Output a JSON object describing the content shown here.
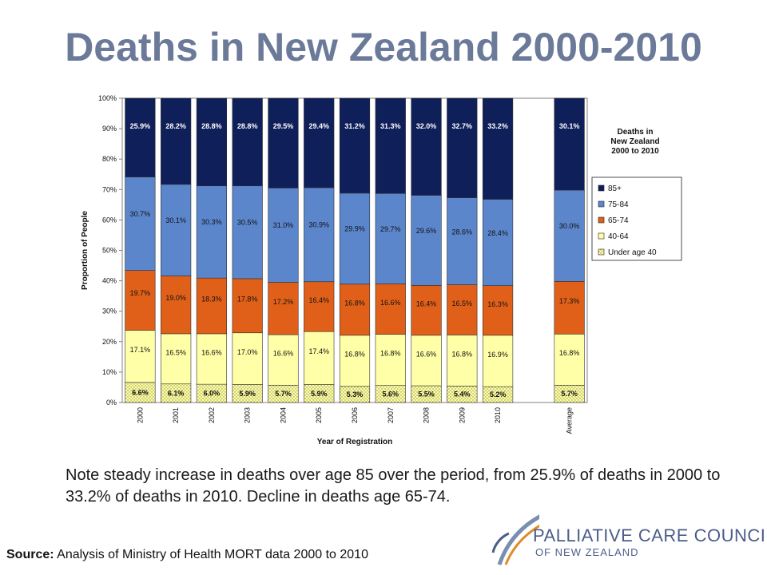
{
  "title": "Deaths in New Zealand 2000-2010",
  "note": "Note steady increase in deaths over age 85 over the period, from 25.9% of deaths in 2000 to 33.2% of deaths in 2010. Decline in deaths age 65-74.",
  "source": {
    "label": "Source:",
    "text": " Analysis of Ministry of Health MORT data 2000 to 2010"
  },
  "logo": {
    "line1": "PALLIATIVE CARE COUNCIL",
    "line2": "OF NEW ZEALAND"
  },
  "colors": {
    "85+": "#0f1f5a",
    "75-84": "#5b86cc",
    "65-74": "#e0601a",
    "40-64": "#ffffa8",
    "under40": "#ffffa8",
    "title": "#6b7a99"
  },
  "chart_data": {
    "type": "bar",
    "stacked": true,
    "categories": [
      "2000",
      "2001",
      "2002",
      "2003",
      "2004",
      "2005",
      "2006",
      "2007",
      "2008",
      "2009",
      "2010",
      "",
      "Average"
    ],
    "series": [
      {
        "name": "Under age 40",
        "values": [
          6.6,
          6.1,
          6.0,
          5.9,
          5.7,
          5.9,
          5.3,
          5.6,
          5.5,
          5.4,
          5.2,
          null,
          5.7
        ]
      },
      {
        "name": "40-64",
        "values": [
          17.1,
          16.5,
          16.6,
          17.0,
          16.6,
          17.4,
          16.8,
          16.8,
          16.6,
          16.8,
          16.9,
          null,
          16.8
        ]
      },
      {
        "name": "65-74",
        "values": [
          19.7,
          19.0,
          18.3,
          17.8,
          17.2,
          16.4,
          16.8,
          16.6,
          16.4,
          16.5,
          16.3,
          null,
          17.3
        ]
      },
      {
        "name": "75-84",
        "values": [
          30.7,
          30.1,
          30.3,
          30.5,
          31.0,
          30.9,
          29.9,
          29.7,
          29.6,
          28.6,
          28.4,
          null,
          30.0
        ]
      },
      {
        "name": "85+",
        "values": [
          25.9,
          28.2,
          28.8,
          28.8,
          29.5,
          29.4,
          31.2,
          31.3,
          32.0,
          32.7,
          33.2,
          null,
          30.1
        ]
      }
    ],
    "labels": [
      [
        "6.6%",
        "6.1%",
        "6.0%",
        "5.9%",
        "5.7%",
        "5.9%",
        "5.3%",
        "5.6%",
        "5.5%",
        "5.4%",
        "5.2%",
        "",
        "5.7%"
      ],
      [
        "17.1%",
        "16.5%",
        "16.6%",
        "17.0%",
        "16.6%",
        "17.4%",
        "16.8%",
        "16.8%",
        "16.6%",
        "16.8%",
        "16.9%",
        "",
        "16.8%"
      ],
      [
        "19.7%",
        "19.0%",
        "18.3%",
        "17.8%",
        "17.2%",
        "16.4%",
        "16.8%",
        "16.6%",
        "16.4%",
        "16.5%",
        "16.3%",
        "",
        "17.3%"
      ],
      [
        "30.7%",
        "30.1%",
        "30.3%",
        "30.5%",
        "31.0%",
        "30.9%",
        "29.9%",
        "29.7%",
        "29.6%",
        "28.6%",
        "28.4%",
        "",
        "30.0%"
      ],
      [
        "25.9%",
        "28.2%",
        "28.8%",
        "28.8%",
        "29.5%",
        "29.4%",
        "31.2%",
        "31.3%",
        "32.0%",
        "32.7%",
        "33.2%",
        "",
        "30.1%"
      ]
    ],
    "yticks": [
      "0%",
      "10%",
      "20%",
      "30%",
      "40%",
      "50%",
      "60%",
      "70%",
      "80%",
      "90%",
      "100%"
    ],
    "ylim": [
      0,
      100
    ],
    "xlabel": "Year of Registration",
    "ylabel": "Proportion of People",
    "legend_title": [
      "Deaths in",
      "New Zealand",
      "2000 to 2010"
    ],
    "legend_items": [
      "85+",
      "75-84",
      "65-74",
      "40-64",
      "Under age 40"
    ],
    "legend_placement": "right",
    "grid": false
  }
}
